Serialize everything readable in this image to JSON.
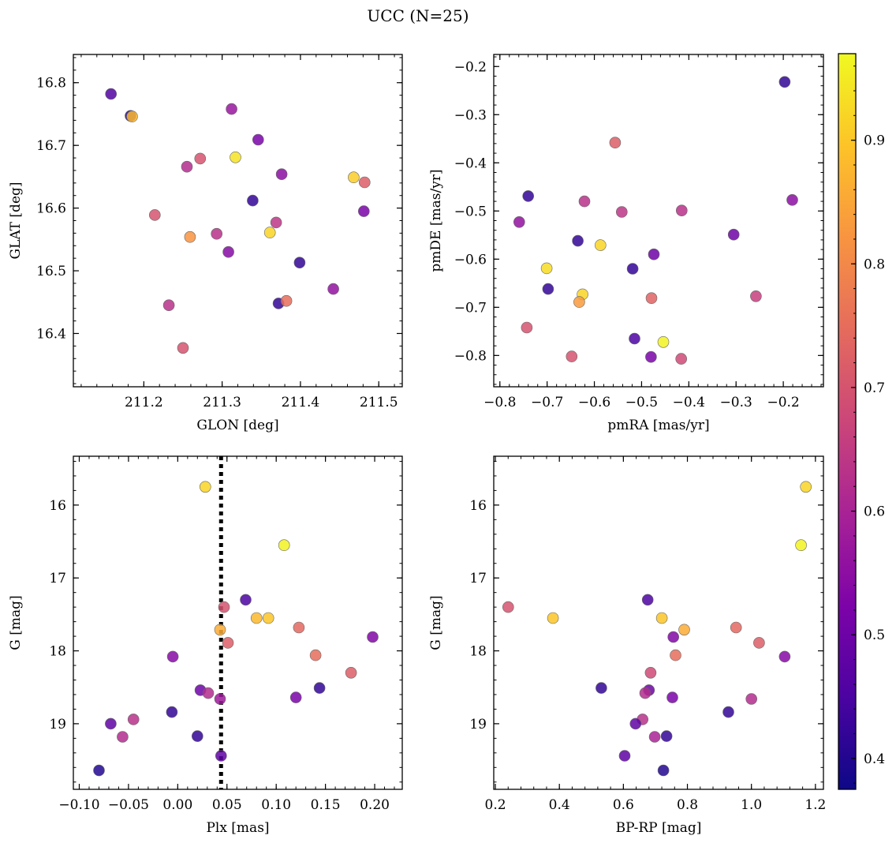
{
  "figure": {
    "title": "UCC (N=25)"
  },
  "colorbar": {
    "vmin": 0.375,
    "vmax": 0.97,
    "ticks": [
      0.4,
      0.5,
      0.6,
      0.7,
      0.8,
      0.9
    ],
    "tick_labels": [
      "0.4",
      "0.5",
      "0.6",
      "0.7",
      "0.8",
      "0.9"
    ],
    "colormap": "plasma"
  },
  "chart_data": [
    {
      "type": "scatter",
      "xlabel": "GLON [deg]",
      "ylabel": "GLAT [deg]",
      "xlim": [
        211.11,
        211.53
      ],
      "ylim": [
        16.315,
        16.845
      ],
      "y_inverted": false,
      "xticks": [
        211.2,
        211.3,
        211.4,
        211.5
      ],
      "xtick_labels": [
        "211.2",
        "211.3",
        "211.4",
        "211.5"
      ],
      "yticks": [
        16.4,
        16.5,
        16.6,
        16.7,
        16.8
      ],
      "ytick_labels": [
        "16.4",
        "16.5",
        "16.6",
        "16.7",
        "16.8"
      ],
      "x": [
        211.158,
        211.183,
        211.185,
        211.312,
        211.346,
        211.317,
        211.255,
        211.272,
        211.376,
        211.468,
        211.482,
        211.339,
        211.214,
        211.369,
        211.481,
        211.259,
        211.293,
        211.361,
        211.308,
        211.399,
        211.442,
        211.372,
        211.382,
        211.232,
        211.25
      ],
      "y": [
        16.782,
        16.747,
        16.746,
        16.758,
        16.709,
        16.681,
        16.666,
        16.679,
        16.654,
        16.649,
        16.641,
        16.612,
        16.589,
        16.577,
        16.595,
        16.554,
        16.559,
        16.561,
        16.53,
        16.513,
        16.471,
        16.448,
        16.452,
        16.445,
        16.377
      ],
      "c": [
        0.46,
        0.4,
        0.88,
        0.57,
        0.52,
        0.94,
        0.62,
        0.7,
        0.55,
        0.91,
        0.72,
        0.42,
        0.7,
        0.64,
        0.52,
        0.82,
        0.63,
        0.92,
        0.54,
        0.42,
        0.56,
        0.42,
        0.75,
        0.63,
        0.7
      ]
    },
    {
      "type": "scatter",
      "xlabel": "pmRA [mas/yr]",
      "ylabel": "pmDE [mas/yr]",
      "xlim": [
        -0.813,
        -0.115
      ],
      "ylim": [
        -0.865,
        -0.175
      ],
      "y_inverted": false,
      "xticks": [
        -0.8,
        -0.7,
        -0.6,
        -0.5,
        -0.4,
        -0.3,
        -0.2
      ],
      "xtick_labels": [
        "−0.8",
        "−0.7",
        "−0.6",
        "−0.5",
        "−0.4",
        "−0.3",
        "−0.2"
      ],
      "yticks": [
        -0.8,
        -0.7,
        -0.6,
        -0.5,
        -0.4,
        -0.3,
        -0.2
      ],
      "ytick_labels": [
        "−0.8",
        "−0.7",
        "−0.6",
        "−0.5",
        "−0.4",
        "−0.3",
        "−0.2"
      ],
      "x": [
        -0.197,
        -0.556,
        -0.74,
        -0.759,
        -0.621,
        -0.542,
        -0.415,
        -0.181,
        -0.305,
        -0.635,
        -0.587,
        -0.519,
        -0.474,
        -0.701,
        -0.698,
        -0.625,
        -0.632,
        -0.479,
        -0.258,
        -0.743,
        -0.515,
        -0.454,
        -0.648,
        -0.48,
        -0.416
      ],
      "y": [
        -0.232,
        -0.358,
        -0.469,
        -0.523,
        -0.48,
        -0.502,
        -0.499,
        -0.477,
        -0.549,
        -0.562,
        -0.571,
        -0.62,
        -0.59,
        -0.619,
        -0.662,
        -0.673,
        -0.689,
        -0.681,
        -0.677,
        -0.742,
        -0.765,
        -0.772,
        -0.802,
        -0.803,
        -0.807
      ],
      "c": [
        0.42,
        0.72,
        0.42,
        0.56,
        0.63,
        0.64,
        0.63,
        0.55,
        0.5,
        0.42,
        0.92,
        0.42,
        0.5,
        0.93,
        0.42,
        0.92,
        0.83,
        0.73,
        0.66,
        0.7,
        0.45,
        0.96,
        0.7,
        0.52,
        0.68
      ]
    },
    {
      "type": "scatter",
      "xlabel": "Plx [mas]",
      "ylabel": "G [mag]",
      "xlim": [
        -0.106,
        0.228
      ],
      "ylim": [
        19.9,
        15.33
      ],
      "y_inverted": true,
      "reference_line": {
        "x": 0.044,
        "style": "dotted"
      },
      "xticks": [
        -0.1,
        -0.05,
        0.0,
        0.05,
        0.1,
        0.15,
        0.2
      ],
      "xtick_labels": [
        "−0.10",
        "−0.05",
        "0.00",
        "0.05",
        "0.10",
        "0.15",
        "0.20"
      ],
      "yticks": [
        16,
        17,
        18,
        19
      ],
      "ytick_labels": [
        "16",
        "17",
        "18",
        "19"
      ],
      "x": [
        0.028,
        0.108,
        0.069,
        0.047,
        0.043,
        0.08,
        0.092,
        0.123,
        0.051,
        0.14,
        0.176,
        0.198,
        -0.005,
        0.023,
        0.031,
        0.043,
        0.12,
        0.144,
        -0.045,
        -0.068,
        -0.006,
        -0.056,
        0.02,
        0.044,
        -0.08
      ],
      "y": [
        15.75,
        16.55,
        17.3,
        17.4,
        17.71,
        17.55,
        17.55,
        17.68,
        17.89,
        18.06,
        18.3,
        17.81,
        18.08,
        18.54,
        18.58,
        18.66,
        18.64,
        18.51,
        18.94,
        19.0,
        18.84,
        19.18,
        19.17,
        19.44,
        19.64
      ],
      "c": [
        0.92,
        0.96,
        0.45,
        0.7,
        0.86,
        0.88,
        0.9,
        0.74,
        0.72,
        0.75,
        0.72,
        0.53,
        0.54,
        0.5,
        0.62,
        0.58,
        0.52,
        0.42,
        0.63,
        0.48,
        0.42,
        0.62,
        0.42,
        0.48,
        0.4
      ]
    },
    {
      "type": "scatter",
      "xlabel": "BP-RP [mag]",
      "ylabel": "G [mag]",
      "xlim": [
        0.195,
        1.225
      ],
      "ylim": [
        19.9,
        15.33
      ],
      "y_inverted": true,
      "xticks": [
        0.2,
        0.4,
        0.6,
        0.8,
        1.0,
        1.2
      ],
      "xtick_labels": [
        "0.2",
        "0.4",
        "0.6",
        "0.8",
        "1.0",
        "1.2"
      ],
      "yticks": [
        16,
        17,
        18,
        19
      ],
      "ytick_labels": [
        "16",
        "17",
        "18",
        "19"
      ],
      "x": [
        1.17,
        1.155,
        0.24,
        0.38,
        0.676,
        0.72,
        0.79,
        0.952,
        0.756,
        1.024,
        0.763,
        1.104,
        0.685,
        0.68,
        0.531,
        0.668,
        0.753,
        1.0,
        0.928,
        0.66,
        0.638,
        0.698,
        0.735,
        0.604,
        0.725
      ],
      "y": [
        15.75,
        16.55,
        17.4,
        17.55,
        17.3,
        17.55,
        17.71,
        17.68,
        17.81,
        17.89,
        18.06,
        18.08,
        18.3,
        18.54,
        18.51,
        18.58,
        18.64,
        18.66,
        18.84,
        18.94,
        19.0,
        19.18,
        19.17,
        19.44,
        19.64
      ],
      "c": [
        0.92,
        0.96,
        0.7,
        0.9,
        0.45,
        0.9,
        0.86,
        0.74,
        0.53,
        0.72,
        0.75,
        0.54,
        0.68,
        0.5,
        0.42,
        0.62,
        0.52,
        0.62,
        0.42,
        0.63,
        0.48,
        0.6,
        0.42,
        0.48,
        0.4
      ]
    }
  ]
}
